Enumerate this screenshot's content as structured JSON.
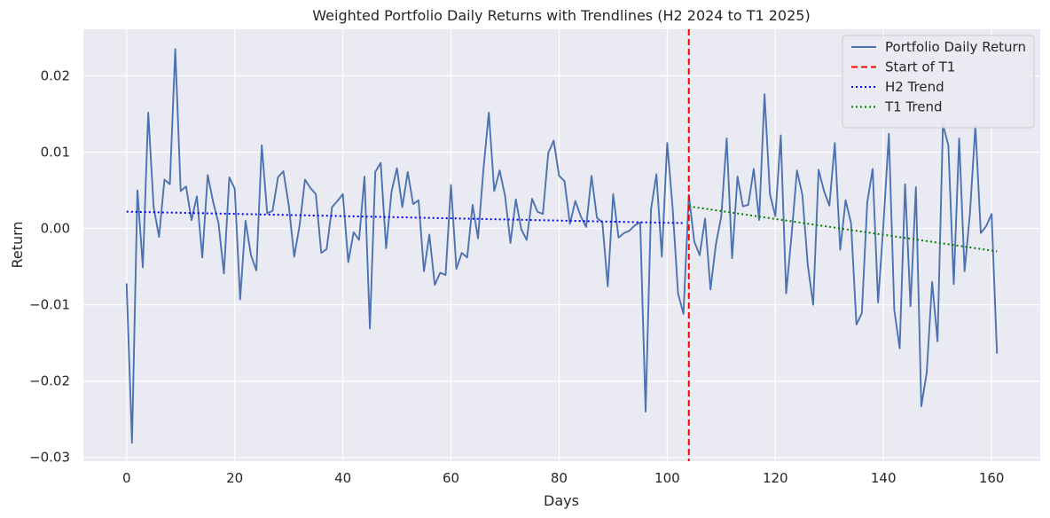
{
  "chart_data": {
    "type": "line",
    "title": "Weighted Portfolio Daily Returns with Trendlines (H2 2024 to T1 2025)",
    "xlabel": "Days",
    "ylabel": "Return",
    "xlim": [
      -8,
      169
    ],
    "ylim": [
      -0.0305,
      0.0261
    ],
    "xticks": [
      0,
      20,
      40,
      60,
      80,
      100,
      120,
      140,
      160
    ],
    "yticks": [
      -0.03,
      -0.02,
      -0.01,
      0.0,
      0.01,
      0.02
    ],
    "xtick_labels": [
      "0",
      "20",
      "40",
      "60",
      "80",
      "100",
      "120",
      "140",
      "160"
    ],
    "ytick_labels": [
      "−0.03",
      "−0.02",
      "−0.01",
      "0.00",
      "0.01",
      "0.02"
    ],
    "grid": true,
    "legend_position": "top-right",
    "series": [
      {
        "name": "Portfolio Daily Return",
        "color": "#4c72b0",
        "style": "solid",
        "x_start": 0,
        "values": [
          -0.0072,
          -0.0281,
          0.005,
          -0.0051,
          0.0152,
          0.0028,
          -0.0011,
          0.0064,
          0.0058,
          0.0235,
          0.0049,
          0.0055,
          0.0011,
          0.0042,
          -0.0038,
          0.007,
          0.0035,
          0.0007,
          -0.0059,
          0.0067,
          0.0052,
          -0.0093,
          0.001,
          -0.0035,
          -0.0055,
          0.0109,
          0.002,
          0.0023,
          0.0067,
          0.0075,
          0.003,
          -0.0037,
          0.0004,
          0.0064,
          0.0053,
          0.0045,
          -0.0032,
          -0.0027,
          0.0028,
          0.0036,
          0.0045,
          -0.0044,
          -0.0005,
          -0.0015,
          0.0068,
          -0.0131,
          0.0074,
          0.0086,
          -0.0026,
          0.0048,
          0.0079,
          0.0028,
          0.0074,
          0.0032,
          0.0037,
          -0.0056,
          -0.0008,
          -0.0074,
          -0.0058,
          -0.0061,
          0.0057,
          -0.0053,
          -0.0032,
          -0.0038,
          0.0031,
          -0.0013,
          0.0077,
          0.0152,
          0.0049,
          0.0076,
          0.0043,
          -0.0019,
          0.0038,
          -0.0001,
          -0.0015,
          0.0039,
          0.0022,
          0.0019,
          0.0099,
          0.0115,
          0.0069,
          0.0062,
          0.0006,
          0.0036,
          0.0016,
          0.0002,
          0.0069,
          0.0014,
          0.0008,
          -0.0076,
          0.0045,
          -0.0012,
          -0.0006,
          -0.0003,
          0.0004,
          0.0008,
          -0.024,
          0.0025,
          0.0071,
          -0.0037,
          0.0112,
          0.0027,
          -0.0085,
          -0.0112,
          0.0044,
          -0.0017,
          -0.0035,
          0.0013,
          -0.008,
          -0.0021,
          0.0016,
          0.0118,
          -0.0039,
          0.0068,
          0.0029,
          0.0031,
          0.0078,
          0.0011,
          0.0176,
          0.0045,
          0.0016,
          0.0122,
          -0.0085,
          -0.0009,
          0.0076,
          0.0044,
          -0.0048,
          -0.01,
          0.0077,
          0.0049,
          0.003,
          0.0112,
          -0.0028,
          0.0037,
          0.0007,
          -0.0126,
          -0.0111,
          0.0034,
          0.0078,
          -0.0097,
          0.0006,
          0.0124,
          -0.0107,
          -0.0157,
          0.0058,
          -0.0102,
          0.0054,
          -0.0233,
          -0.0189,
          -0.007,
          -0.0148,
          0.0136,
          0.0109,
          -0.0073,
          0.0118,
          -0.0056,
          0.002,
          0.0135,
          -0.0006,
          0.0003,
          0.0019,
          -0.0164
        ]
      },
      {
        "name": "Start of T1",
        "color": "#ff0000",
        "style": "dashed",
        "vertical_at_x": 104
      },
      {
        "name": "H2 Trend",
        "color": "#0000ff",
        "style": "dotted",
        "x": [
          0,
          103
        ],
        "values": [
          0.0022,
          0.0007
        ]
      },
      {
        "name": "T1 Trend",
        "color": "#008000",
        "style": "dotted",
        "x": [
          104,
          161
        ],
        "values": [
          0.0029,
          -0.003
        ]
      }
    ]
  }
}
